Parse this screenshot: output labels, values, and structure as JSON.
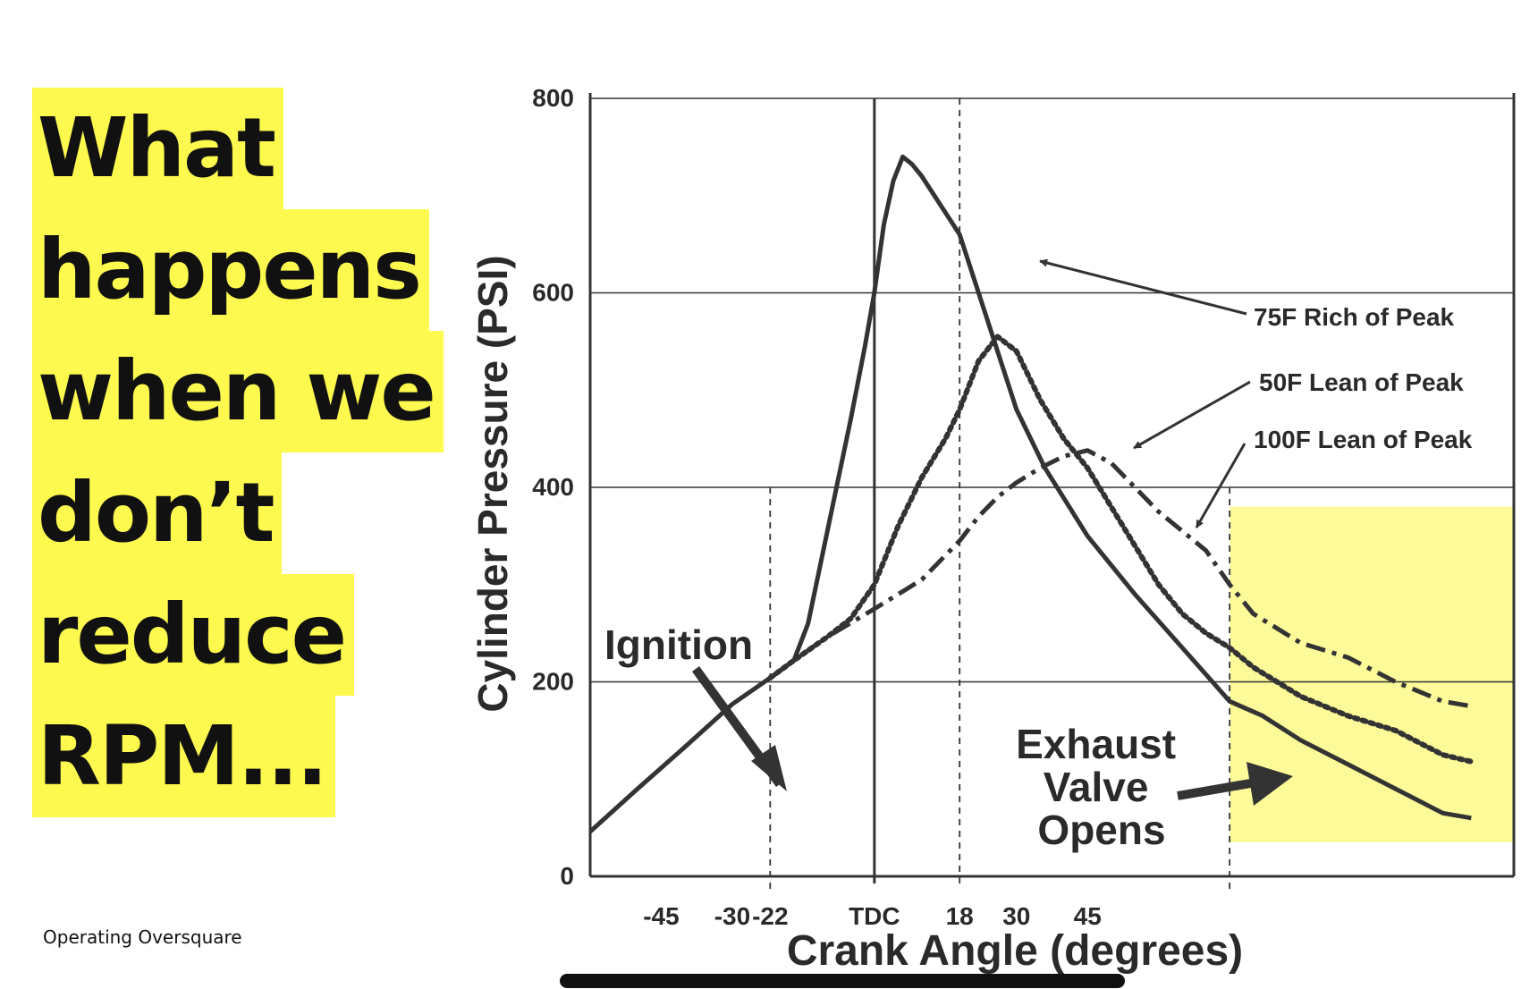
{
  "slide": {
    "title_lines": [
      "What",
      "happens",
      "when we",
      "don’t",
      "reduce",
      "RPM..."
    ],
    "footer": "Operating Oversquare"
  },
  "colors": {
    "highlight_yellow": "#fdf94e",
    "shaded_region": "#fdfa9a",
    "curve": "#333333"
  },
  "chart_data": {
    "type": "line",
    "title": "",
    "xlabel": "Crank Angle (degrees)",
    "ylabel": "Cylinder Pressure (PSI)",
    "xlim": [
      -60,
      135
    ],
    "ylim": [
      0,
      800
    ],
    "x_ticks": [
      {
        "value": -45,
        "label": "-45"
      },
      {
        "value": -30,
        "label": "-30"
      },
      {
        "value": -22,
        "label": "-22"
      },
      {
        "value": 0,
        "label": "TDC"
      },
      {
        "value": 18,
        "label": "18"
      },
      {
        "value": 30,
        "label": "30"
      },
      {
        "value": 45,
        "label": "45"
      }
    ],
    "y_ticks": [
      0,
      200,
      400,
      600,
      800
    ],
    "grid": "horizontal",
    "series": [
      {
        "name": "75F Rich of Peak",
        "style": "solid",
        "points": [
          [
            -60,
            46
          ],
          [
            -50,
            90
          ],
          [
            -40,
            133
          ],
          [
            -30,
            177
          ],
          [
            -22,
            204
          ],
          [
            -17,
            222
          ],
          [
            -14,
            260
          ],
          [
            -11,
            330
          ],
          [
            -8,
            400
          ],
          [
            -5,
            470
          ],
          [
            -2,
            545
          ],
          [
            0,
            600
          ],
          [
            2,
            670
          ],
          [
            4,
            715
          ],
          [
            6,
            740
          ],
          [
            8,
            732
          ],
          [
            10,
            720
          ],
          [
            12,
            705
          ],
          [
            14,
            690
          ],
          [
            16,
            675
          ],
          [
            18,
            660
          ],
          [
            22,
            600
          ],
          [
            26,
            540
          ],
          [
            30,
            480
          ],
          [
            36,
            420
          ],
          [
            45,
            350
          ],
          [
            55,
            290
          ],
          [
            65,
            235
          ],
          [
            75,
            180
          ],
          [
            82,
            165
          ],
          [
            90,
            140
          ],
          [
            100,
            115
          ],
          [
            110,
            90
          ],
          [
            120,
            65
          ],
          [
            126,
            60
          ]
        ]
      },
      {
        "name": "50F Lean of Peak",
        "style": "dotted",
        "points": [
          [
            -22,
            204
          ],
          [
            -17,
            222
          ],
          [
            -10,
            246
          ],
          [
            -5,
            265
          ],
          [
            0,
            300
          ],
          [
            5,
            360
          ],
          [
            10,
            410
          ],
          [
            15,
            450
          ],
          [
            18,
            480
          ],
          [
            22,
            530
          ],
          [
            26,
            555
          ],
          [
            30,
            540
          ],
          [
            35,
            490
          ],
          [
            40,
            450
          ],
          [
            45,
            420
          ],
          [
            50,
            380
          ],
          [
            55,
            340
          ],
          [
            60,
            300
          ],
          [
            65,
            270
          ],
          [
            70,
            250
          ],
          [
            75,
            235
          ],
          [
            80,
            215
          ],
          [
            90,
            185
          ],
          [
            100,
            165
          ],
          [
            110,
            150
          ],
          [
            120,
            125
          ],
          [
            126,
            118
          ]
        ]
      },
      {
        "name": "100F Lean of Peak",
        "style": "dash-dot",
        "points": [
          [
            -22,
            204
          ],
          [
            -17,
            222
          ],
          [
            -10,
            246
          ],
          [
            0,
            275
          ],
          [
            10,
            305
          ],
          [
            18,
            345
          ],
          [
            22,
            370
          ],
          [
            26,
            390
          ],
          [
            30,
            405
          ],
          [
            35,
            420
          ],
          [
            40,
            432
          ],
          [
            45,
            438
          ],
          [
            50,
            425
          ],
          [
            55,
            400
          ],
          [
            60,
            375
          ],
          [
            65,
            355
          ],
          [
            70,
            335
          ],
          [
            75,
            300
          ],
          [
            80,
            270
          ],
          [
            90,
            240
          ],
          [
            100,
            225
          ],
          [
            110,
            200
          ],
          [
            120,
            180
          ],
          [
            126,
            175
          ]
        ]
      }
    ],
    "vertical_lines": [
      {
        "x": -22,
        "style": "dashed"
      },
      {
        "x": 0,
        "style": "solid"
      },
      {
        "x": 18,
        "style": "dashed"
      },
      {
        "x": 75,
        "style": "dashed"
      }
    ],
    "shaded_region": {
      "x": [
        75,
        135
      ],
      "y": [
        35,
        380
      ]
    },
    "annotations": [
      {
        "text": "75F Rich of Peak",
        "points_to": [
          25,
          620
        ]
      },
      {
        "text": "50F Lean of Peak",
        "points_to": [
          45,
          440
        ]
      },
      {
        "text": "100F Lean of Peak",
        "points_to": [
          58,
          350
        ]
      },
      {
        "text": "Ignition",
        "points_to": [
          -22,
          90
        ]
      },
      {
        "text": "Exhaust Valve Opens",
        "points_to": [
          75,
          90
        ]
      }
    ]
  }
}
